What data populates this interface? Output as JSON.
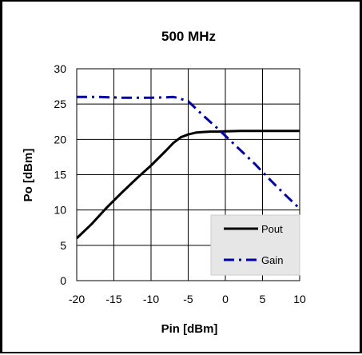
{
  "chart_data": {
    "type": "line",
    "title": "500 MHz",
    "xlabel": "Pin [dBm]",
    "ylabel": "Po [dBm]",
    "xlim": [
      -20,
      10
    ],
    "ylim": [
      0,
      30
    ],
    "xticks": [
      -20,
      -15,
      -10,
      -5,
      0,
      5,
      10
    ],
    "yticks": [
      0,
      5,
      10,
      15,
      20,
      25,
      30
    ],
    "grid": true,
    "legend_position": "bottom-right",
    "series": [
      {
        "name": "Pout",
        "color": "#000000",
        "style": "solid",
        "x": [
          -20,
          -18,
          -16,
          -14,
          -12,
          -10,
          -8,
          -7,
          -6,
          -5,
          -4,
          -3,
          -2,
          -1,
          0,
          2,
          4,
          6,
          8,
          10
        ],
        "y": [
          6,
          8,
          10.3,
          12.4,
          14.4,
          16.3,
          18.4,
          19.5,
          20.3,
          20.7,
          20.95,
          21.05,
          21.1,
          21.1,
          21.15,
          21.2,
          21.2,
          21.2,
          21.2,
          21.2
        ]
      },
      {
        "name": "Gain",
        "color": "#0000a0",
        "style": "dashdot",
        "x": [
          -20,
          -17,
          -14,
          -10,
          -8,
          -7,
          -6.5,
          -5,
          -3,
          -1,
          0,
          2,
          4,
          6,
          8,
          10
        ],
        "y": [
          26,
          26,
          25.9,
          25.9,
          25.95,
          26,
          25.9,
          25.4,
          23.4,
          21.5,
          20.5,
          18.5,
          16.5,
          14.3,
          12.2,
          10.2
        ]
      }
    ]
  }
}
